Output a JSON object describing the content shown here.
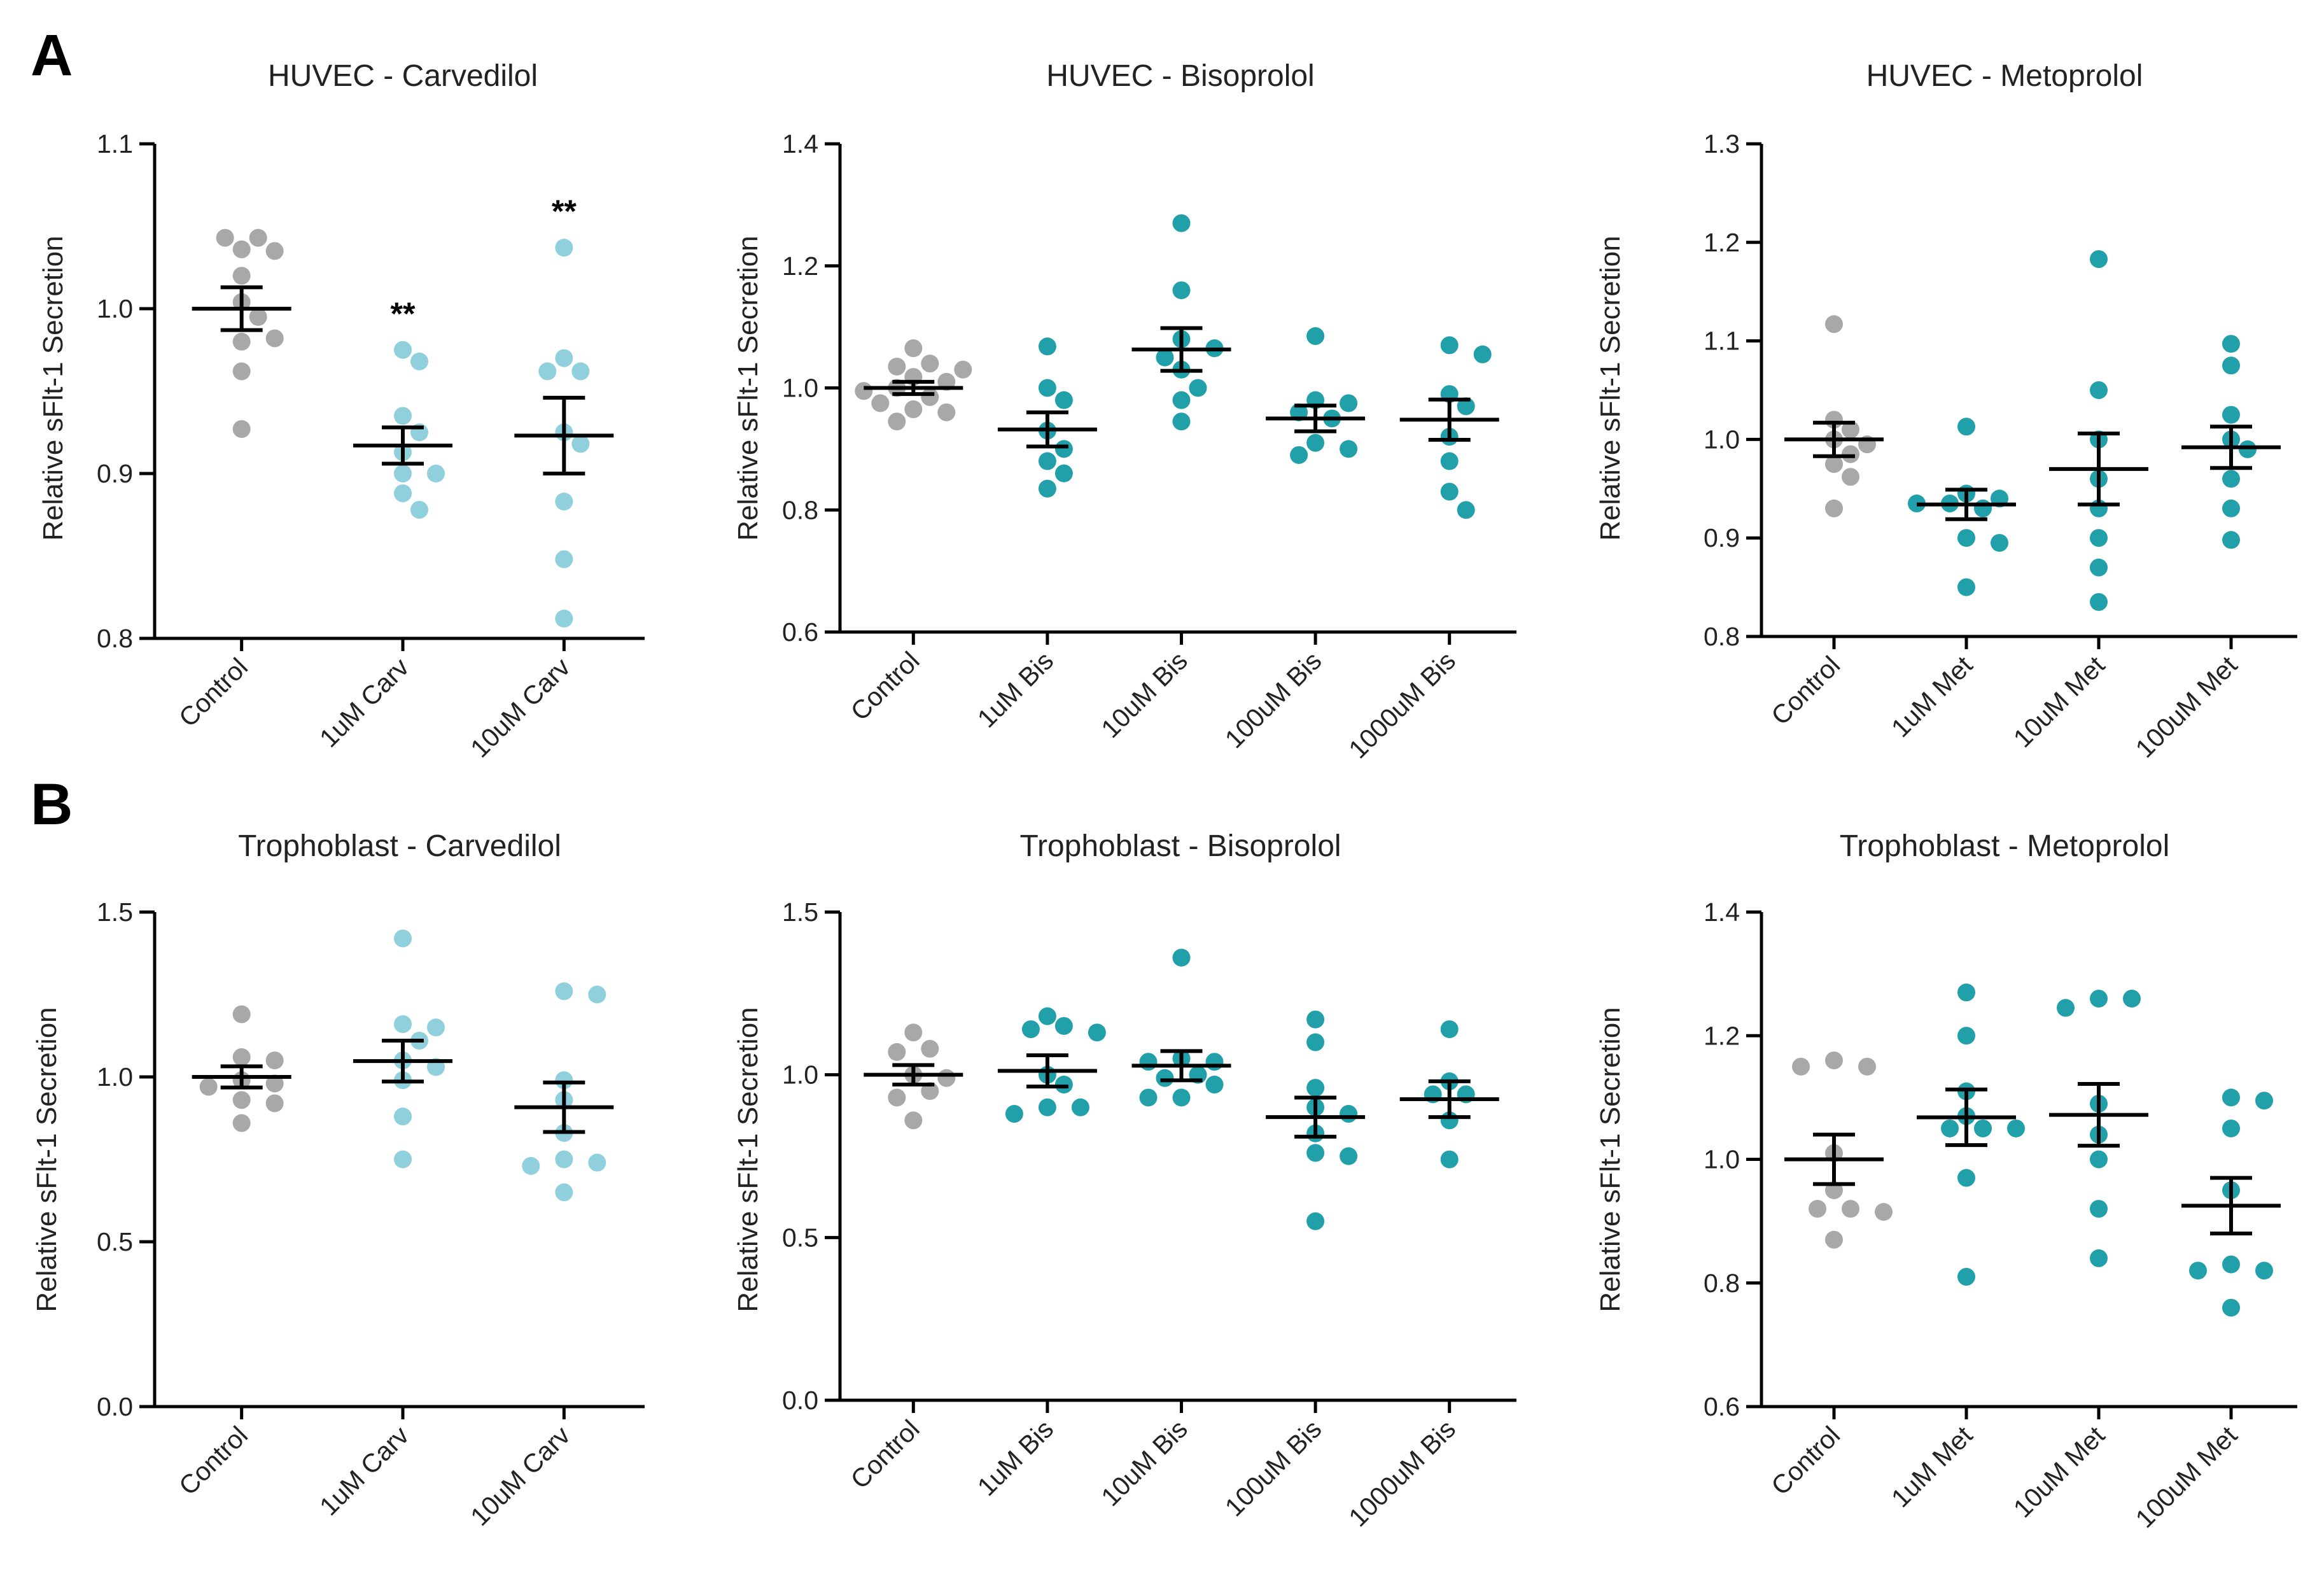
{
  "panel_labels": [
    "A",
    "B"
  ],
  "chart_data": [
    {
      "type": "scatter",
      "title": "HUVEC - Carvedilol",
      "ylabel": "Relative sFlt-1 Secretion",
      "xlabel": "",
      "ylim": [
        0.8,
        1.1
      ],
      "yticks": [
        0.8,
        0.9,
        1.0,
        1.1
      ],
      "ytick_labels": [
        "0.8",
        "0.9",
        "1.0",
        "1.1"
      ],
      "categories": [
        "Control",
        "1uM Carv",
        "10uM Carv"
      ],
      "colors": [
        "#a8a8a8",
        "#8fd0dc",
        "#8fd0dc"
      ],
      "points": [
        [
          1.036,
          1.043,
          1.043,
          1.035,
          1.02,
          1.004,
          0.995,
          0.98,
          0.982,
          0.962,
          0.927
        ],
        [
          0.975,
          0.968,
          0.935,
          0.925,
          0.913,
          0.9,
          0.9,
          0.888,
          0.878
        ],
        [
          1.037,
          0.97,
          0.962,
          0.962,
          0.925,
          0.918,
          0.883,
          0.848,
          0.812
        ]
      ],
      "mean": [
        1.0,
        0.917,
        0.923
      ],
      "sem": [
        0.013,
        0.011,
        0.023
      ],
      "annotations": [
        "",
        "**",
        "**"
      ]
    },
    {
      "type": "scatter",
      "title": "HUVEC - Bisoprolol",
      "ylabel": "Relative sFlt-1 Secretion",
      "xlabel": "",
      "ylim": [
        0.6,
        1.4
      ],
      "yticks": [
        0.6,
        0.8,
        1.0,
        1.2,
        1.4
      ],
      "ytick_labels": [
        "0.6",
        "0.8",
        "1.0",
        "1.2",
        "1.4"
      ],
      "categories": [
        "Control",
        "1uM Bis",
        "10uM Bis",
        "100uM Bis",
        "1000uM Bis"
      ],
      "colors": [
        "#a8a8a8",
        "#22a0aa",
        "#22a0aa",
        "#22a0aa",
        "#22a0aa"
      ],
      "points": [
        [
          1.065,
          1.04,
          1.035,
          1.03,
          1.018,
          1.01,
          1.0,
          0.995,
          0.985,
          0.975,
          0.965,
          0.96,
          0.945
        ],
        [
          1.068,
          1.0,
          0.98,
          0.93,
          0.9,
          0.88,
          0.86,
          0.835
        ],
        [
          1.27,
          1.16,
          1.08,
          1.065,
          1.05,
          1.03,
          1.0,
          0.98,
          0.945
        ],
        [
          1.085,
          0.98,
          0.975,
          0.96,
          0.95,
          0.91,
          0.9,
          0.89
        ],
        [
          1.07,
          1.055,
          0.99,
          0.97,
          0.92,
          0.88,
          0.83,
          0.8
        ]
      ],
      "mean": [
        1.0,
        0.932,
        1.063,
        0.95,
        0.948
      ],
      "sem": [
        0.01,
        0.028,
        0.035,
        0.021,
        0.033
      ],
      "annotations": [
        "",
        "",
        "",
        "",
        ""
      ]
    },
    {
      "type": "scatter",
      "title": "HUVEC - Metoprolol",
      "ylabel": "Relative sFlt-1 Secretion",
      "xlabel": "",
      "ylim": [
        0.8,
        1.3
      ],
      "yticks": [
        0.8,
        0.9,
        1.0,
        1.1,
        1.2,
        1.3
      ],
      "ytick_labels": [
        "0.8",
        "0.9",
        "1.0",
        "1.1",
        "1.2",
        "1.3"
      ],
      "categories": [
        "Control",
        "1uM Met",
        "10uM Met",
        "100uM Met"
      ],
      "colors": [
        "#a8a8a8",
        "#22a0aa",
        "#22a0aa",
        "#22a0aa"
      ],
      "points": [
        [
          1.117,
          1.02,
          1.01,
          1.0,
          0.995,
          0.985,
          0.975,
          0.962,
          0.93
        ],
        [
          1.013,
          0.945,
          0.94,
          0.935,
          0.935,
          0.93,
          0.9,
          0.895,
          0.85
        ],
        [
          1.183,
          1.05,
          1.0,
          0.96,
          0.93,
          0.9,
          0.87,
          0.835
        ],
        [
          1.097,
          1.075,
          1.025,
          1.0,
          0.99,
          0.96,
          0.93,
          0.898
        ]
      ],
      "mean": [
        1.0,
        0.934,
        0.97,
        0.992
      ],
      "sem": [
        0.017,
        0.015,
        0.036,
        0.021
      ],
      "annotations": [
        "",
        "",
        "",
        ""
      ]
    },
    {
      "type": "scatter",
      "title": "Trophoblast - Carvedilol",
      "ylabel": "Relative sFlt-1 Secretion",
      "xlabel": "",
      "ylim": [
        0.0,
        1.5
      ],
      "yticks": [
        0.0,
        0.5,
        1.0,
        1.5
      ],
      "ytick_labels": [
        "0.0",
        "0.5",
        "1.0",
        "1.5"
      ],
      "categories": [
        "Control",
        "1uM Carv",
        "10uM Carv"
      ],
      "colors": [
        "#a8a8a8",
        "#8fd0dc",
        "#8fd0dc"
      ],
      "points": [
        [
          1.19,
          1.06,
          1.05,
          0.99,
          0.98,
          0.97,
          0.93,
          0.92,
          0.86
        ],
        [
          1.42,
          1.16,
          1.15,
          1.11,
          1.05,
          1.03,
          0.99,
          0.88,
          0.75
        ],
        [
          1.26,
          1.25,
          0.99,
          0.93,
          0.83,
          0.75,
          0.74,
          0.73,
          0.65
        ]
      ],
      "mean": [
        1.0,
        1.048,
        0.908
      ],
      "sem": [
        0.032,
        0.062,
        0.075
      ],
      "annotations": [
        "",
        "",
        ""
      ]
    },
    {
      "type": "scatter",
      "title": "Trophoblast - Bisoprolol",
      "ylabel": "Relative sFlt-1 Secretion",
      "xlabel": "",
      "ylim": [
        0.0,
        1.5
      ],
      "yticks": [
        0.0,
        0.5,
        1.0,
        1.5
      ],
      "ytick_labels": [
        "0.0",
        "0.5",
        "1.0",
        "1.5"
      ],
      "categories": [
        "Control",
        "1uM Bis",
        "10uM Bis",
        "100uM Bis",
        "1000uM Bis"
      ],
      "colors": [
        "#a8a8a8",
        "#22a0aa",
        "#22a0aa",
        "#22a0aa",
        "#22a0aa"
      ],
      "points": [
        [
          1.13,
          1.08,
          1.07,
          1.0,
          0.99,
          0.95,
          0.93,
          0.86
        ],
        [
          1.18,
          1.15,
          1.14,
          1.13,
          1.0,
          0.97,
          0.9,
          0.9,
          0.88
        ],
        [
          1.36,
          1.05,
          1.04,
          1.04,
          1.0,
          0.99,
          0.97,
          0.93,
          0.93
        ],
        [
          1.17,
          1.1,
          0.96,
          0.9,
          0.88,
          0.82,
          0.76,
          0.75,
          0.55
        ],
        [
          1.14,
          0.98,
          0.94,
          0.94,
          0.86,
          0.74
        ]
      ],
      "mean": [
        1.0,
        1.012,
        1.028,
        0.87,
        0.925
      ],
      "sem": [
        0.03,
        0.048,
        0.045,
        0.06,
        0.055
      ],
      "annotations": [
        "",
        "",
        "",
        "",
        ""
      ]
    },
    {
      "type": "scatter",
      "title": "Trophoblast - Metoprolol",
      "ylabel": "Relative sFlt-1 Secretion",
      "xlabel": "",
      "ylim": [
        0.6,
        1.4
      ],
      "yticks": [
        0.6,
        0.8,
        1.0,
        1.2,
        1.4
      ],
      "ytick_labels": [
        "0.6",
        "0.8",
        "1.0",
        "1.2",
        "1.4"
      ],
      "categories": [
        "Control",
        "1uM Met",
        "10uM Met",
        "100uM Met"
      ],
      "colors": [
        "#a8a8a8",
        "#22a0aa",
        "#22a0aa",
        "#22a0aa"
      ],
      "points": [
        [
          1.16,
          1.15,
          1.15,
          1.01,
          0.95,
          0.92,
          0.92,
          0.915,
          0.87
        ],
        [
          1.27,
          1.2,
          1.11,
          1.07,
          1.05,
          1.05,
          1.05,
          0.97,
          0.81
        ],
        [
          1.26,
          1.26,
          1.245,
          1.09,
          1.04,
          1.0,
          0.92,
          0.84
        ],
        [
          1.1,
          1.095,
          1.05,
          0.95,
          0.83,
          0.82,
          0.82,
          0.76
        ]
      ],
      "mean": [
        1.0,
        1.068,
        1.072,
        0.925
      ],
      "sem": [
        0.04,
        0.045,
        0.05,
        0.045
      ],
      "annotations": [
        "",
        "",
        "",
        ""
      ]
    }
  ]
}
